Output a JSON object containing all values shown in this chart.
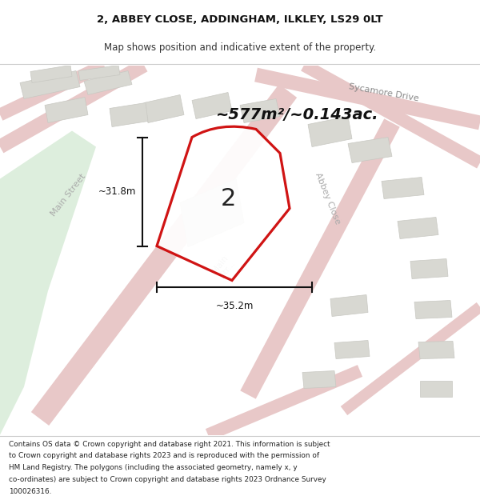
{
  "title_line1": "2, ABBEY CLOSE, ADDINGHAM, ILKLEY, LS29 0LT",
  "title_line2": "Map shows position and indicative extent of the property.",
  "area_text": "~577m²/~0.143ac.",
  "label_number": "2",
  "dim_width": "~35.2m",
  "dim_height": "~31.8m",
  "footer_text": "Contains OS data © Crown copyright and database right 2021. This information is subject to Crown copyright and database rights 2023 and is reproduced with the permission of HM Land Registry. The polygons (including the associated geometry, namely x, y co-ordinates) are subject to Crown copyright and database rights 2023 Ordnance Survey 100026316.",
  "map_bg": "#ebebeb",
  "road_fill": "#e8c8c8",
  "road_outline": "#d4a0a0",
  "block_fill": "#d8d8d2",
  "block_edge": "#c8c8c2",
  "green_fill": "#ddeedd",
  "property_fill": "#ffffff",
  "property_outline": "#cc0000",
  "dim_color": "#111111",
  "street_color": "#aaaaaa",
  "title_color": "#111111",
  "footer_color": "#222222",
  "white": "#ffffff"
}
